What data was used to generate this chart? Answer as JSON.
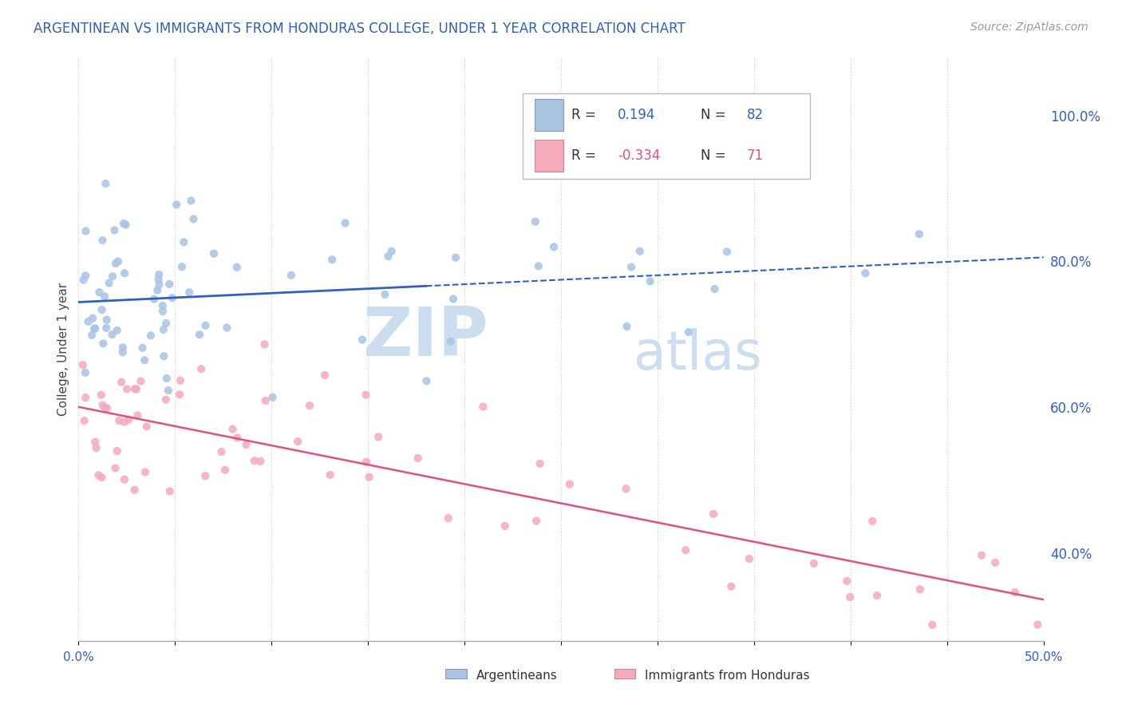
{
  "title": "ARGENTINEAN VS IMMIGRANTS FROM HONDURAS COLLEGE, UNDER 1 YEAR CORRELATION CHART",
  "source": "Source: ZipAtlas.com",
  "ylabel": "College, Under 1 year",
  "ylabel_right_ticks": [
    "40.0%",
    "60.0%",
    "80.0%",
    "100.0%"
  ],
  "ylabel_right_values": [
    0.4,
    0.6,
    0.8,
    1.0
  ],
  "xlim": [
    0.0,
    0.5
  ],
  "ylim": [
    0.28,
    1.08
  ],
  "r_blue": 0.194,
  "n_blue": 82,
  "r_pink": -0.334,
  "n_pink": 71,
  "blue_color": "#aac4e2",
  "pink_color": "#f4aabb",
  "blue_line_color": "#3060c0",
  "pink_line_color": "#e05080",
  "title_color": "#3060b0",
  "source_color": "#999999",
  "watermark_zip": "ZIP",
  "watermark_atlas": "atlas",
  "watermark_color_zip": "#ccddf0",
  "watermark_color_atlas": "#ccddf0"
}
